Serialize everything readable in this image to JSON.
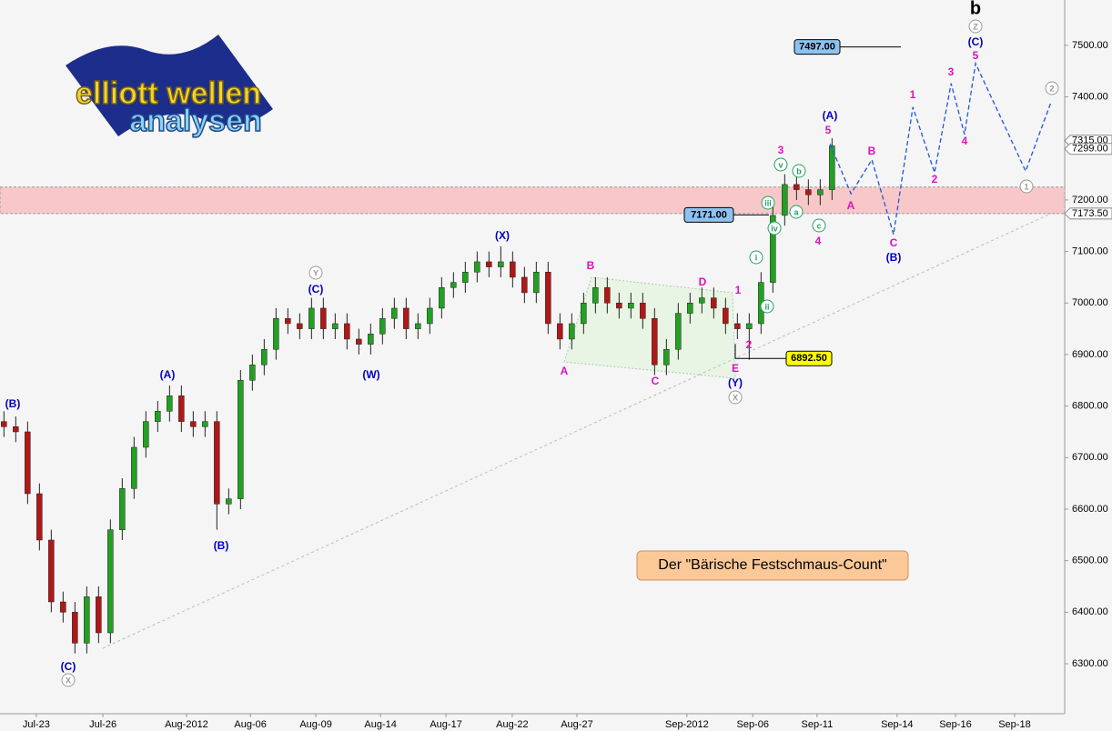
{
  "chart_data": {
    "type": "candlestick",
    "title": "Der \"Bärische Festschmaus-Count\"",
    "logo": [
      "elliott wellen",
      "analysen"
    ],
    "x": [
      1,
      4,
      7,
      10,
      13,
      16,
      19,
      22,
      25,
      28,
      31,
      34,
      37,
      40,
      43,
      46,
      49,
      52,
      55,
      58,
      61,
      64,
      67,
      70,
      73,
      76,
      79,
      82,
      85,
      88,
      91,
      94,
      97,
      100,
      103,
      106,
      109,
      112,
      115,
      118,
      121,
      124,
      127,
      130,
      133,
      136,
      139,
      142,
      145,
      148,
      151,
      154,
      157,
      160,
      163,
      166,
      169,
      172,
      175,
      178,
      181,
      184,
      187,
      190,
      193,
      196,
      199,
      202,
      205,
      208,
      211
    ],
    "open": [
      6770,
      6760,
      6750,
      6630,
      6540,
      6420,
      6400,
      6340,
      6430,
      6360,
      6560,
      6640,
      6720,
      6770,
      6790,
      6820,
      6770,
      6760,
      6770,
      6610,
      6620,
      6850,
      6880,
      6910,
      6970,
      6960,
      6950,
      6990,
      6950,
      6960,
      6930,
      6920,
      6940,
      6970,
      6990,
      6950,
      6960,
      6990,
      7030,
      7040,
      7060,
      7080,
      7070,
      7080,
      7050,
      7020,
      7060,
      6960,
      6930,
      6960,
      7000,
      7030,
      7000,
      6990,
      7000,
      6970,
      6880,
      6910,
      6980,
      7000,
      7010,
      6990,
      6960,
      6950,
      6960,
      7040,
      7170,
      7230,
      7220,
      7210,
      7220
    ],
    "high": [
      6790,
      6780,
      6770,
      6650,
      6560,
      6440,
      6420,
      6450,
      6450,
      6580,
      6660,
      6740,
      6790,
      6810,
      6840,
      6840,
      6790,
      6790,
      6790,
      6640,
      6870,
      6900,
      6930,
      6990,
      6990,
      6980,
      7010,
      7010,
      6980,
      6980,
      6950,
      6960,
      6990,
      7010,
      7010,
      6980,
      7010,
      7050,
      7060,
      7080,
      7100,
      7100,
      7110,
      7100,
      7070,
      7080,
      7080,
      6980,
      6980,
      7020,
      7050,
      7050,
      7020,
      7020,
      7020,
      6990,
      6930,
      7000,
      7020,
      7030,
      7030,
      7010,
      6980,
      6980,
      7060,
      7190,
      7250,
      7250,
      7240,
      7240,
      7320
    ],
    "low": [
      6740,
      6730,
      6610,
      6520,
      6400,
      6380,
      6320,
      6320,
      6340,
      6340,
      6540,
      6620,
      6700,
      6750,
      6770,
      6750,
      6740,
      6740,
      6560,
      6590,
      6600,
      6830,
      6860,
      6890,
      6940,
      6930,
      6930,
      6930,
      6930,
      6910,
      6900,
      6900,
      6920,
      6950,
      6930,
      6930,
      6940,
      6970,
      7010,
      7020,
      7040,
      7050,
      7050,
      7030,
      7000,
      7000,
      6940,
      6910,
      6910,
      6940,
      6980,
      6980,
      6970,
      6970,
      6950,
      6860,
      6860,
      6890,
      6960,
      6980,
      6970,
      6940,
      6930,
      6890,
      6940,
      7020,
      7150,
      7200,
      7190,
      7190,
      7200
    ],
    "close": [
      6760,
      6750,
      6630,
      6540,
      6420,
      6400,
      6340,
      6430,
      6360,
      6560,
      6640,
      6720,
      6770,
      6790,
      6820,
      6770,
      6760,
      6770,
      6610,
      6620,
      6850,
      6880,
      6910,
      6970,
      6960,
      6950,
      6990,
      6950,
      6960,
      6930,
      6920,
      6940,
      6970,
      6990,
      6950,
      6960,
      6990,
      7030,
      7040,
      7060,
      7080,
      7070,
      7080,
      7050,
      7020,
      7060,
      6960,
      6930,
      6960,
      7000,
      7030,
      7000,
      6990,
      7000,
      6970,
      6880,
      6910,
      6980,
      7000,
      7010,
      6990,
      6960,
      6950,
      6960,
      7040,
      7170,
      7230,
      7220,
      7210,
      7220,
      7305
    ],
    "up_color": "#22a022",
    "down_color": "#b01818",
    "forecast": {
      "color": "#2255dd",
      "x": [
        210.5,
        215.8,
        221.1,
        226.6,
        231.5,
        237,
        241.2,
        244.6,
        247.4,
        260.1,
        266.6
      ],
      "values": [
        7309,
        7212,
        7278,
        7133,
        7380,
        7253,
        7426,
        7327,
        7465,
        7256,
        7391
      ]
    },
    "zone": {
      "from": 7173.5,
      "to": 7225,
      "color": "#f8c8c8"
    },
    "xlim": [
      0,
      270
    ],
    "xticks": [
      {
        "value": 9.2,
        "label": "Jul-23"
      },
      {
        "value": 26.1,
        "label": "Jul-26"
      },
      {
        "value": 47.3,
        "label": "Aug-2012"
      },
      {
        "value": 63.5,
        "label": "Aug-06"
      },
      {
        "value": 80.1,
        "label": "Aug-09"
      },
      {
        "value": 96.5,
        "label": "Aug-14"
      },
      {
        "value": 113.1,
        "label": "Aug-17"
      },
      {
        "value": 129.9,
        "label": "Aug-22"
      },
      {
        "value": 146.3,
        "label": "Aug-27"
      },
      {
        "value": 174.2,
        "label": "Sep-2012"
      },
      {
        "value": 190.9,
        "label": "Sep-06"
      },
      {
        "value": 207.2,
        "label": "Sep-11"
      },
      {
        "value": 227.5,
        "label": "Sep-14"
      },
      {
        "value": 242.3,
        "label": "Sep-16"
      },
      {
        "value": 257.3,
        "label": "Sep-18"
      }
    ],
    "ylim": [
      6203,
      7588
    ],
    "yticks": [
      {
        "value": 6300,
        "label": "6300.00"
      },
      {
        "value": 6400,
        "label": "6400.00"
      },
      {
        "value": 6500,
        "label": "6500.00"
      },
      {
        "value": 6600,
        "label": "6600.00"
      },
      {
        "value": 6700,
        "label": "6700.00"
      },
      {
        "value": 6800,
        "label": "6800.00"
      },
      {
        "value": 6900,
        "label": "6900.00"
      },
      {
        "value": 7000,
        "label": "7000.00"
      },
      {
        "value": 7100,
        "label": "7100.00"
      },
      {
        "value": 7200,
        "label": "7200.00"
      },
      {
        "value": 7300,
        "label": "7300.00"
      },
      {
        "value": 7400,
        "label": "7400.00"
      },
      {
        "value": 7500,
        "label": "7500.00"
      }
    ],
    "axis_tags": [
      {
        "value": 7315,
        "label": "7315.00"
      },
      {
        "value": 7299,
        "label": "7299.00"
      },
      {
        "value": 7173.5,
        "label": "7173.50"
      }
    ],
    "price_boxes": [
      {
        "value": 7497,
        "label": "7497.00",
        "color": "#8ec2f0"
      },
      {
        "value": 7171,
        "label": "7171.00",
        "color": "#8ec2f0"
      },
      {
        "value": 6892.5,
        "label": "6892.50",
        "color": "#ffff00"
      }
    ],
    "annotations": [
      {
        "text": "(B)",
        "color": "#0000c0"
      },
      {
        "text": "(C)",
        "color": "#0000c0"
      },
      {
        "text": "X",
        "color": "#999999",
        "circled": true
      },
      {
        "text": "(A)",
        "color": "#0000c0"
      },
      {
        "text": "(B)",
        "color": "#0000c0"
      },
      {
        "text": "(C)",
        "color": "#0000c0"
      },
      {
        "text": "Y",
        "color": "#999999",
        "circled": true
      },
      {
        "text": "(W)",
        "color": "#0000c0"
      },
      {
        "text": "(X)",
        "color": "#0000c0"
      },
      {
        "text": "(Y)",
        "color": "#0000c0"
      },
      {
        "text": "X",
        "color": "#999999",
        "circled": true
      },
      {
        "text": "(A)",
        "color": "#0000c0"
      },
      {
        "text": "(B)",
        "color": "#0000c0"
      },
      {
        "text": "(C)",
        "color": "#0000c0"
      },
      {
        "text": "Z",
        "color": "#999999",
        "circled": true
      },
      {
        "text": "b",
        "color": "#000000"
      },
      {
        "text": "5",
        "color": "#e010c0"
      },
      {
        "text": "3",
        "color": "#e010c0"
      },
      {
        "text": "4",
        "color": "#e010c0"
      },
      {
        "text": "A",
        "color": "#e010c0"
      },
      {
        "text": "B",
        "color": "#e010c0"
      },
      {
        "text": "C",
        "color": "#e010c0"
      },
      {
        "text": "1",
        "color": "#e010c0"
      },
      {
        "text": "2",
        "color": "#e010c0"
      },
      {
        "text": "3",
        "color": "#e010c0"
      },
      {
        "text": "4",
        "color": "#e010c0"
      },
      {
        "text": "5",
        "color": "#e010c0"
      },
      {
        "text": "A",
        "color": "#e010c0"
      },
      {
        "text": "B",
        "color": "#e010c0"
      },
      {
        "text": "C",
        "color": "#e010c0"
      },
      {
        "text": "D",
        "color": "#e010c0"
      },
      {
        "text": "E",
        "color": "#e010c0"
      },
      {
        "text": "1",
        "color": "#e010c0"
      },
      {
        "text": "2",
        "color": "#e010c0"
      },
      {
        "text": "v",
        "color": "#22a060",
        "circled": true
      },
      {
        "text": "b",
        "color": "#22a060",
        "circled": true
      },
      {
        "text": "iii",
        "color": "#22a060",
        "circled": true
      },
      {
        "text": "a",
        "color": "#22a060",
        "circled": true
      },
      {
        "text": "iv",
        "color": "#22a060",
        "circled": true
      },
      {
        "text": "c",
        "color": "#22a060",
        "circled": true
      },
      {
        "text": "i",
        "color": "#22a060",
        "circled": true
      },
      {
        "text": "ii",
        "color": "#22a060",
        "circled": true
      },
      {
        "text": "1",
        "color": "#999999",
        "circled": true
      },
      {
        "text": "2",
        "color": "#999999",
        "circled": true
      }
    ]
  }
}
